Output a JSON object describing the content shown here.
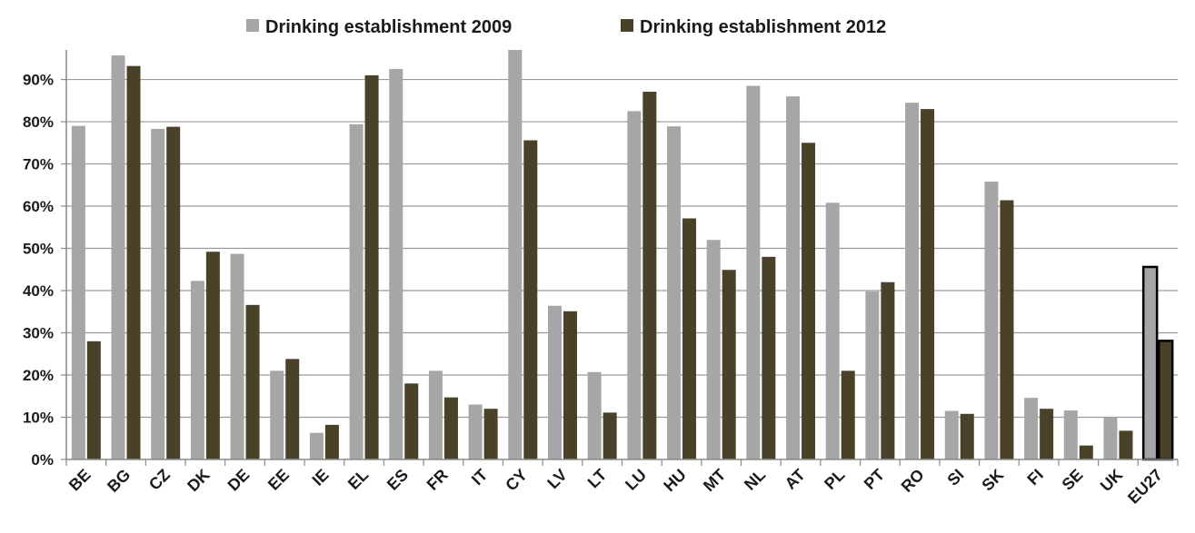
{
  "chart_data": {
    "type": "bar",
    "title": "",
    "xlabel": "",
    "ylabel": "",
    "ylim": [
      0,
      97
    ],
    "yticks": [
      0,
      10,
      20,
      30,
      40,
      50,
      60,
      70,
      80,
      90
    ],
    "ytick_labels": [
      "0%",
      "10%",
      "20%",
      "30%",
      "40%",
      "50%",
      "60%",
      "70%",
      "80%",
      "90%"
    ],
    "grid": true,
    "legend_position": "top-center",
    "categories": [
      "BE",
      "BG",
      "CZ",
      "DK",
      "DE",
      "EE",
      "IE",
      "EL",
      "ES",
      "FR",
      "IT",
      "CY",
      "LV",
      "LT",
      "LU",
      "HU",
      "MT",
      "NL",
      "AT",
      "PL",
      "PT",
      "RO",
      "SI",
      "SK",
      "FI",
      "SE",
      "UK",
      "EU27"
    ],
    "highlighted_category": "EU27",
    "series": [
      {
        "name": "Drinking establishment 2009",
        "color": "#a6a6a6",
        "values": [
          79,
          95.7,
          78.3,
          42.3,
          48.7,
          21,
          6.3,
          79.4,
          92.5,
          21,
          13,
          97,
          36.4,
          20.7,
          82.5,
          78.9,
          52,
          88.5,
          86,
          60.8,
          39.8,
          84.5,
          11.5,
          65.8,
          14.6,
          11.6,
          10,
          45.6
        ]
      },
      {
        "name": "Drinking establishment 2012",
        "color": "#4a4228",
        "values": [
          28,
          93.2,
          78.8,
          49.2,
          36.6,
          23.8,
          8.2,
          91,
          18,
          14.7,
          12,
          75.6,
          35.1,
          11.1,
          87.1,
          57.1,
          44.9,
          48,
          75,
          21,
          42,
          83,
          10.8,
          61.4,
          12,
          3.3,
          6.8,
          28.1
        ]
      }
    ]
  }
}
